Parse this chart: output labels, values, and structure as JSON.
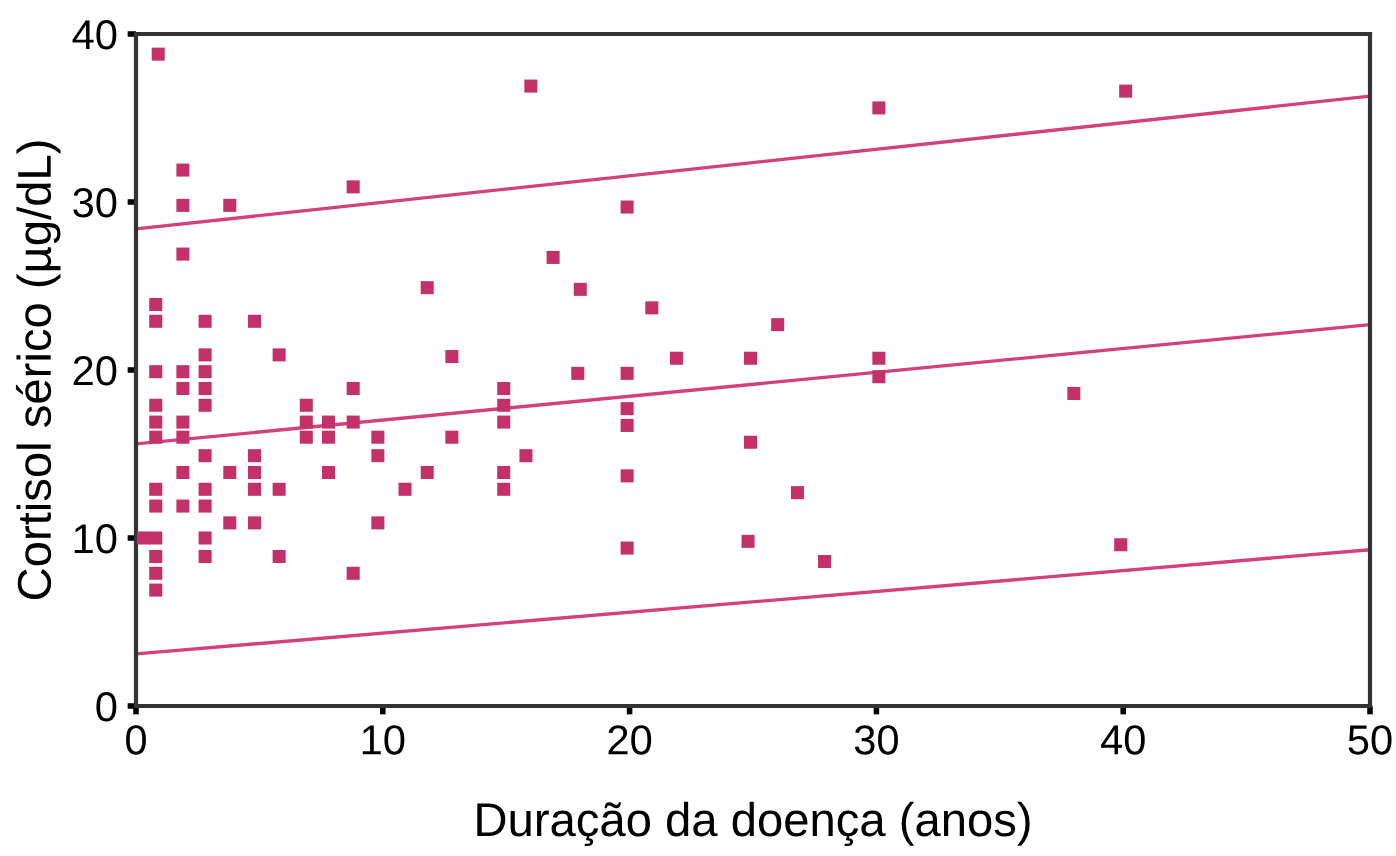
{
  "chart_data": {
    "type": "scatter",
    "xlabel": "Duração da doença (anos)",
    "ylabel": "Cortisol sérico (µg/dL)",
    "xlim": [
      0,
      50
    ],
    "ylim": [
      0,
      40
    ],
    "xticks": [
      0,
      10,
      20,
      30,
      40,
      50
    ],
    "yticks": [
      0,
      10,
      20,
      30,
      40
    ],
    "grid": false,
    "series": [
      {
        "marker": "square",
        "color": "#c4306a",
        "x": [
          0.9,
          1.9,
          1.9,
          3.8,
          1.9,
          0.8,
          0.8,
          2.8,
          4.8,
          0.8,
          1.9,
          2.8,
          2.8,
          2.8,
          1.9,
          2.8,
          5.8,
          0.8,
          0.8,
          0.8,
          1.9,
          1.9,
          2.8,
          4.8,
          1.9,
          3.8,
          4.8,
          0.8,
          0.8,
          1.9,
          2.8,
          2.8,
          4.8,
          5.8,
          3.8,
          4.8,
          0.3,
          0.8,
          0.8,
          0.8,
          0.8,
          2.8,
          2.8,
          5.8,
          6.9,
          6.9,
          6.9,
          7.8,
          7.8,
          8.8,
          8.8,
          7.8,
          8.8,
          8.8,
          9.8,
          9.8,
          9.8,
          10.9,
          11.8,
          11.8,
          12.8,
          12.8,
          14.9,
          14.9,
          14.9,
          14.9,
          14.9,
          15.8,
          16.0,
          16.9,
          30.1,
          40.1,
          19.9,
          18.0,
          20.9,
          26.0,
          21.9,
          24.9,
          30.1,
          30.1,
          17.9,
          19.9,
          19.9,
          19.9,
          19.9,
          19.9,
          38.0,
          24.9,
          26.8,
          24.8,
          27.9,
          39.9
        ],
        "values": [
          38.8,
          31.9,
          29.8,
          29.8,
          26.9,
          23.9,
          22.9,
          22.9,
          22.9,
          19.9,
          19.9,
          20.9,
          19.9,
          18.9,
          18.9,
          17.9,
          20.9,
          17.9,
          16.9,
          16.0,
          16.9,
          16.0,
          14.9,
          14.9,
          13.9,
          13.9,
          13.9,
          12.9,
          11.9,
          11.9,
          12.9,
          11.9,
          12.9,
          12.9,
          10.9,
          10.9,
          10.0,
          10.0,
          8.9,
          7.9,
          6.9,
          10.0,
          8.9,
          8.9,
          17.9,
          16.9,
          16.0,
          16.9,
          16.0,
          18.9,
          16.9,
          13.9,
          7.9,
          30.9,
          16.0,
          14.9,
          10.9,
          12.9,
          13.9,
          24.9,
          20.8,
          16.0,
          18.9,
          17.9,
          16.9,
          13.9,
          12.9,
          14.9,
          36.9,
          26.7,
          35.6,
          36.6,
          29.7,
          24.8,
          23.7,
          22.7,
          20.7,
          20.7,
          20.7,
          19.6,
          19.8,
          19.8,
          17.7,
          16.7,
          13.7,
          9.4,
          18.6,
          15.7,
          12.7,
          9.8,
          8.6,
          9.6
        ]
      },
      {
        "type": "line",
        "marker": "none",
        "color": "#d4407a",
        "x": [
          0,
          50
        ],
        "values": [
          28.4,
          36.3
        ]
      },
      {
        "type": "line",
        "marker": "none",
        "color": "#d4407a",
        "x": [
          0,
          50
        ],
        "values": [
          15.6,
          22.7
        ]
      },
      {
        "type": "line",
        "marker": "none",
        "color": "#d4407a",
        "x": [
          0,
          50
        ],
        "values": [
          3.1,
          9.3
        ]
      }
    ]
  }
}
